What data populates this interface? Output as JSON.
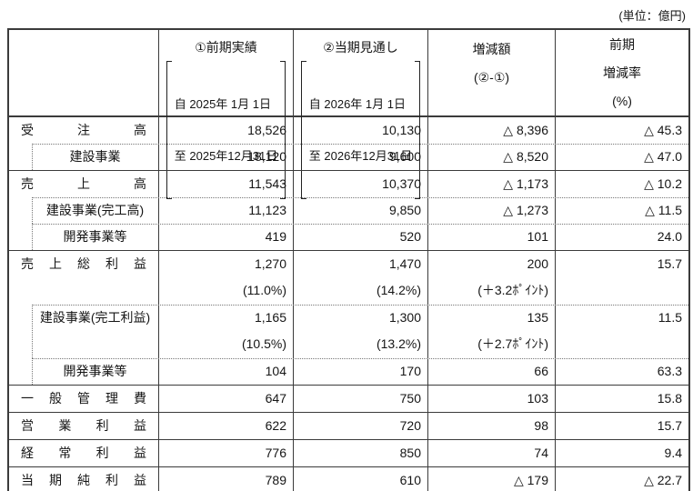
{
  "unit_label": "(単位：億円)",
  "header": {
    "item": "",
    "prev": {
      "title": "①前期実績",
      "from": "自 2025年 1月 1日",
      "to": "至 2025年12月31日"
    },
    "current": {
      "title": "②当期見通し",
      "from": "自 2026年 1月 1日",
      "to": "至 2026年12月31日"
    },
    "change": {
      "line1": "増減額",
      "line2": "(②-①)"
    },
    "rate": {
      "line1": "前期",
      "line2": "増減率",
      "line3": "(%)"
    }
  },
  "rows": [
    {
      "label": "受　注　高",
      "indent": false,
      "sep": "none",
      "cells": {
        "prev": [
          "18,526"
        ],
        "current": [
          "10,130"
        ],
        "change": [
          "△ 8,396"
        ],
        "rate": [
          "△ 45.3"
        ]
      }
    },
    {
      "label": "建設事業",
      "indent": true,
      "sep": "dotted",
      "cells": {
        "prev": [
          "18,120"
        ],
        "current": [
          "9,600"
        ],
        "change": [
          "△ 8,520"
        ],
        "rate": [
          "△ 47.0"
        ]
      }
    },
    {
      "label": "売　上　高",
      "indent": false,
      "sep": "solid",
      "cells": {
        "prev": [
          "11,543"
        ],
        "current": [
          "10,370"
        ],
        "change": [
          "△ 1,173"
        ],
        "rate": [
          "△ 10.2"
        ]
      }
    },
    {
      "label": "建設事業(完工高)",
      "indent": true,
      "sep": "dotted",
      "cells": {
        "prev": [
          "11,123"
        ],
        "current": [
          "9,850"
        ],
        "change": [
          "△ 1,273"
        ],
        "rate": [
          "△ 11.5"
        ]
      }
    },
    {
      "label": "開発事業等",
      "indent": true,
      "sep": "dotted",
      "cells": {
        "prev": [
          "419"
        ],
        "current": [
          "520"
        ],
        "change": [
          "101"
        ],
        "rate": [
          "24.0"
        ]
      }
    },
    {
      "label": "売　上　総　利　益",
      "indent": false,
      "sep": "solid",
      "cells": {
        "prev": [
          "1,270",
          "(11.0%)"
        ],
        "current": [
          "1,470",
          "(14.2%)"
        ],
        "change": [
          "200",
          "(＋3.2ﾎﾟｲﾝﾄ)"
        ],
        "rate": [
          "15.7",
          ""
        ]
      }
    },
    {
      "label": "建設事業(完工利益)",
      "indent": true,
      "sep": "dotted",
      "cells": {
        "prev": [
          "1,165",
          "(10.5%)"
        ],
        "current": [
          "1,300",
          "(13.2%)"
        ],
        "change": [
          "135",
          "(＋2.7ﾎﾟｲﾝﾄ)"
        ],
        "rate": [
          "11.5",
          ""
        ]
      }
    },
    {
      "label": "開発事業等",
      "indent": true,
      "sep": "dotted",
      "cells": {
        "prev": [
          "104"
        ],
        "current": [
          "170"
        ],
        "change": [
          "66"
        ],
        "rate": [
          "63.3"
        ]
      }
    },
    {
      "label": "一　般　管　理　費",
      "indent": false,
      "sep": "solid",
      "cells": {
        "prev": [
          "647"
        ],
        "current": [
          "750"
        ],
        "change": [
          "103"
        ],
        "rate": [
          "15.8"
        ]
      }
    },
    {
      "label": "営　業　利　益",
      "indent": false,
      "sep": "solid",
      "cells": {
        "prev": [
          "622"
        ],
        "current": [
          "720"
        ],
        "change": [
          "98"
        ],
        "rate": [
          "15.7"
        ]
      }
    },
    {
      "label": "経　常　利　益",
      "indent": false,
      "sep": "solid",
      "cells": {
        "prev": [
          "776"
        ],
        "current": [
          "850"
        ],
        "change": [
          "74"
        ],
        "rate": [
          "9.4"
        ]
      }
    },
    {
      "label": "当　期　純　利　益",
      "indent": false,
      "sep": "solid",
      "cells": {
        "prev": [
          "789"
        ],
        "current": [
          "610"
        ],
        "change": [
          "△ 179"
        ],
        "rate": [
          "△ 22.7"
        ]
      }
    }
  ]
}
